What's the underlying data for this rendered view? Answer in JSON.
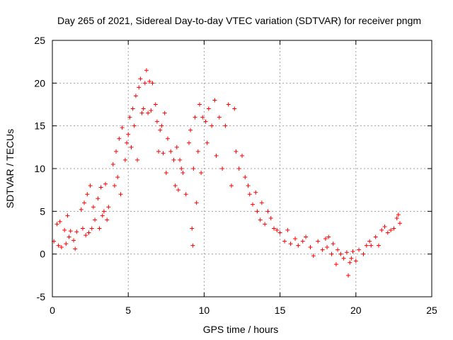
{
  "chart_data": {
    "type": "scatter",
    "title": "Day 265 of 2021, Sidereal Day-to-day VTEC variation (SDTVAR) for receiver pngm",
    "xlabel": "GPS time / hours",
    "ylabel": "SDTVAR / TECUs",
    "xlim": [
      0,
      25
    ],
    "ylim": [
      -5,
      25
    ],
    "xticks": [
      "0",
      "5",
      "10",
      "15",
      "20",
      "25"
    ],
    "yticks": [
      "-5",
      "0",
      "5",
      "10",
      "15",
      "20",
      "25"
    ],
    "grid": true,
    "marker": "plus",
    "color": "#ff0000",
    "series": [
      {
        "name": "SDTVAR",
        "points": [
          [
            0.1,
            1.5
          ],
          [
            0.3,
            3.5
          ],
          [
            0.4,
            1.0
          ],
          [
            0.5,
            3.8
          ],
          [
            0.6,
            0.8
          ],
          [
            0.8,
            2.8
          ],
          [
            0.9,
            1.2
          ],
          [
            1.0,
            4.5
          ],
          [
            1.1,
            2.0
          ],
          [
            1.2,
            2.7
          ],
          [
            1.4,
            1.6
          ],
          [
            1.5,
            0.6
          ],
          [
            1.6,
            2.6
          ],
          [
            1.9,
            5.2
          ],
          [
            2.0,
            3.0
          ],
          [
            2.1,
            6.0
          ],
          [
            2.2,
            2.2
          ],
          [
            2.3,
            7.0
          ],
          [
            2.4,
            2.5
          ],
          [
            2.5,
            8.0
          ],
          [
            2.6,
            3.0
          ],
          [
            2.7,
            5.5
          ],
          [
            2.8,
            4.0
          ],
          [
            3.0,
            6.5
          ],
          [
            3.1,
            3.0
          ],
          [
            3.2,
            7.8
          ],
          [
            3.3,
            4.5
          ],
          [
            3.4,
            5.0
          ],
          [
            3.5,
            8.2
          ],
          [
            3.6,
            4.0
          ],
          [
            3.7,
            5.5
          ],
          [
            4.0,
            10.5
          ],
          [
            4.1,
            8.0
          ],
          [
            4.2,
            12.0
          ],
          [
            4.3,
            9.0
          ],
          [
            4.4,
            13.5
          ],
          [
            4.5,
            7.0
          ],
          [
            4.6,
            14.8
          ],
          [
            4.8,
            11.0
          ],
          [
            4.9,
            13.0
          ],
          [
            5.0,
            14.0
          ],
          [
            5.1,
            16.0
          ],
          [
            5.2,
            12.5
          ],
          [
            5.3,
            17.0
          ],
          [
            5.4,
            15.0
          ],
          [
            5.5,
            18.5
          ],
          [
            5.6,
            11.0
          ],
          [
            5.7,
            19.5
          ],
          [
            5.8,
            20.5
          ],
          [
            5.9,
            16.5
          ],
          [
            6.0,
            17.0
          ],
          [
            6.1,
            20.0
          ],
          [
            6.2,
            21.5
          ],
          [
            6.3,
            16.5
          ],
          [
            6.4,
            20.2
          ],
          [
            6.5,
            16.8
          ],
          [
            6.6,
            20.0
          ],
          [
            6.8,
            17.5
          ],
          [
            6.9,
            15.5
          ],
          [
            7.0,
            12.0
          ],
          [
            7.1,
            14.5
          ],
          [
            7.2,
            15.0
          ],
          [
            7.3,
            11.8
          ],
          [
            7.4,
            16.5
          ],
          [
            7.5,
            9.5
          ],
          [
            7.6,
            13.5
          ],
          [
            7.8,
            12.0
          ],
          [
            8.0,
            11.0
          ],
          [
            8.1,
            8.0
          ],
          [
            8.2,
            12.5
          ],
          [
            8.3,
            7.5
          ],
          [
            8.4,
            11.0
          ],
          [
            8.5,
            10.0
          ],
          [
            8.6,
            9.5
          ],
          [
            8.8,
            7.0
          ],
          [
            9.0,
            13.0
          ],
          [
            9.1,
            14.5
          ],
          [
            9.2,
            3.0
          ],
          [
            9.25,
            1.0
          ],
          [
            9.3,
            10.0
          ],
          [
            9.4,
            16.0
          ],
          [
            9.5,
            6.0
          ],
          [
            9.6,
            12.0
          ],
          [
            9.7,
            17.5
          ],
          [
            9.8,
            9.5
          ],
          [
            9.9,
            16.0
          ],
          [
            10.1,
            15.5
          ],
          [
            10.2,
            13.0
          ],
          [
            10.3,
            17.0
          ],
          [
            10.5,
            15.0
          ],
          [
            10.7,
            18.0
          ],
          [
            10.8,
            11.5
          ],
          [
            11.0,
            16.0
          ],
          [
            11.2,
            10.0
          ],
          [
            11.4,
            15.0
          ],
          [
            11.6,
            17.5
          ],
          [
            11.8,
            8.0
          ],
          [
            12.0,
            17.0
          ],
          [
            12.1,
            12.0
          ],
          [
            12.3,
            10.0
          ],
          [
            12.5,
            11.5
          ],
          [
            12.7,
            9.0
          ],
          [
            12.9,
            8.0
          ],
          [
            13.0,
            7.0
          ],
          [
            13.2,
            5.8
          ],
          [
            13.4,
            7.2
          ],
          [
            13.5,
            5.0
          ],
          [
            13.7,
            4.0
          ],
          [
            13.8,
            6.0
          ],
          [
            14.0,
            3.5
          ],
          [
            14.2,
            5.0
          ],
          [
            14.4,
            4.2
          ],
          [
            14.6,
            3.0
          ],
          [
            14.8,
            2.8
          ],
          [
            15.0,
            2.5
          ],
          [
            15.3,
            1.5
          ],
          [
            15.5,
            2.8
          ],
          [
            15.7,
            1.2
          ],
          [
            16.0,
            1.8
          ],
          [
            16.2,
            1.0
          ],
          [
            16.5,
            1.5
          ],
          [
            16.7,
            2.0
          ],
          [
            17.0,
            0.8
          ],
          [
            17.2,
            -0.2
          ],
          [
            17.5,
            1.5
          ],
          [
            17.8,
            0.5
          ],
          [
            18.0,
            1.8
          ],
          [
            18.1,
            0.8
          ],
          [
            18.2,
            2.0
          ],
          [
            18.4,
            0.0
          ],
          [
            18.5,
            1.2
          ],
          [
            18.7,
            -1.2
          ],
          [
            18.8,
            0.5
          ],
          [
            19.0,
            0.0
          ],
          [
            19.2,
            -0.5
          ],
          [
            19.4,
            0.2
          ],
          [
            19.5,
            -2.5
          ],
          [
            19.6,
            -1.0
          ],
          [
            19.7,
            -0.5
          ],
          [
            19.8,
            0.3
          ],
          [
            20.0,
            -0.8
          ],
          [
            20.2,
            0.5
          ],
          [
            20.5,
            0.0
          ],
          [
            20.7,
            1.0
          ],
          [
            20.9,
            1.5
          ],
          [
            21.0,
            1.0
          ],
          [
            21.3,
            2.0
          ],
          [
            21.5,
            1.0
          ],
          [
            21.7,
            2.8
          ],
          [
            21.9,
            3.2
          ],
          [
            22.1,
            2.5
          ],
          [
            22.3,
            2.8
          ],
          [
            22.5,
            3.0
          ],
          [
            22.7,
            4.2
          ],
          [
            22.8,
            4.6
          ],
          [
            22.9,
            3.6
          ]
        ]
      }
    ]
  }
}
